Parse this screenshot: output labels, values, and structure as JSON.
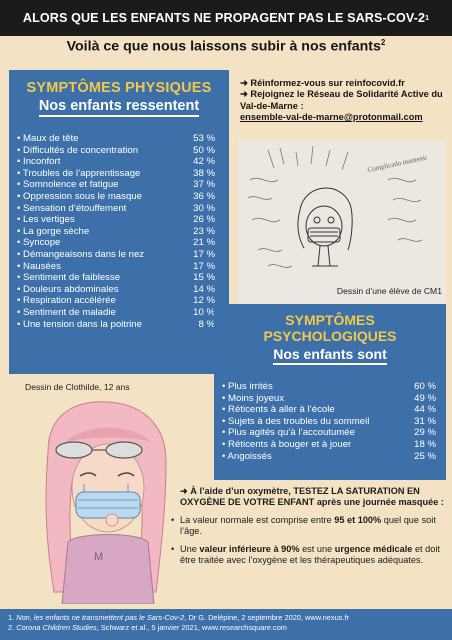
{
  "header": {
    "title": "ALORS QUE LES ENFANTS NE PROPAGENT PAS LE SARS-COV-2",
    "title_ref": "1",
    "subtitle": "Voilà ce que nous laissons subir à nos enfants",
    "subtitle_ref": "2"
  },
  "physical": {
    "heading": "SYMPTÔMES PHYSIQUES",
    "subheading": "Nos enfants ressentent",
    "items": [
      {
        "label": "Maux de tête",
        "value": "53 %"
      },
      {
        "label": "Difficultés de concentration",
        "value": "50 %"
      },
      {
        "label": "Inconfort",
        "value": "42 %"
      },
      {
        "label": "Troubles de l’apprentissage",
        "value": "38 %"
      },
      {
        "label": "Somnolence et fatigue",
        "value": "37 %"
      },
      {
        "label": "Oppression sous le masque",
        "value": "36 %"
      },
      {
        "label": "Sensation d’étouffement",
        "value": "30 %"
      },
      {
        "label": "Les vertiges",
        "value": "26 %"
      },
      {
        "label": "La gorge sèche",
        "value": "23 %"
      },
      {
        "label": "Syncope",
        "value": "21 %"
      },
      {
        "label": "Démangeaisons dans le nez",
        "value": "17 %"
      },
      {
        "label": "Nausées",
        "value": "17 %"
      },
      {
        "label": "Sentiment de faiblesse",
        "value": "15 %"
      },
      {
        "label": "Douleurs abdominales",
        "value": "14 %"
      },
      {
        "label": "Respiration accélérée",
        "value": "12 %"
      },
      {
        "label": "Sentiment de maladie",
        "value": "10 %"
      },
      {
        "label": "Une tension dans la poitrine",
        "value": "8 %"
      }
    ]
  },
  "info": {
    "line1_prefix": "➜ Réinformez-vous sur ",
    "line1_link": "reinfocovid.fr",
    "line2": "➜ Rejoignez le Réseau de Solidarité Active du Val-de-Marne :",
    "email": "ensemble-val-de-marne@protonmail.com"
  },
  "drawing1": {
    "caption": "Dessin d’une élève de CM1",
    "scribble": "Complicado mantenir"
  },
  "psychological": {
    "heading_line1": "SYMPTÔMES",
    "heading_line2": "PSYCHOLOGIQUES",
    "subheading": "Nos enfants sont",
    "items": [
      {
        "label": "Plus irrités",
        "value": "60 %"
      },
      {
        "label": "Moins joyeux",
        "value": "49 %"
      },
      {
        "label": "Réticents à aller à l’école",
        "value": "44 %"
      },
      {
        "label": "Sujets à des troubles du sommeil",
        "value": "31 %"
      },
      {
        "label": "Plus agités qu’à l’accoutumée",
        "value": "29 %"
      },
      {
        "label": "Réticents à bouger et à jouer",
        "value": "18 %"
      },
      {
        "label": "Angoissés",
        "value": "25 %"
      }
    ]
  },
  "drawing2": {
    "caption": "Dessin de Clothilde, 12 ans"
  },
  "oximeter": {
    "intro_a": "➜ À l’aide d’un oxymètre, ",
    "intro_b": "TESTEZ LA SATURATION EN OXYGÈNE DE VOTRE ENFANT",
    "intro_c": " après une journée masquée :",
    "b1_a": "La valeur normale est comprise entre ",
    "b1_b": "95 et 100%",
    "b1_c": " quel que soit l’âge.",
    "b2_a": "Une ",
    "b2_b": "valeur inférieure à 90%",
    "b2_c": " est une ",
    "b2_d": "urgence médicale",
    "b2_e": " et doit être traitée avec l’oxygène et les thérapeutiques adéquates."
  },
  "footer": {
    "ref1_num": "1.",
    "ref1_title": "Non, les enfants ne transmettent pas le Sars-Cov-2",
    "ref1_rest": ", Dr G. Delépine, 2 septembre 2020, www.nexus.fr",
    "ref2_num": "2.",
    "ref2_title": "Corona Children Studies",
    "ref2_rest": ", Schwarz et al., 5 janvier 2021, www.researchsquare.com"
  },
  "colors": {
    "panel_blue": "#3d70a9",
    "heading_yellow": "#f2c84a",
    "background": "#f3e2c3",
    "top_bar": "#1b1b1b"
  }
}
